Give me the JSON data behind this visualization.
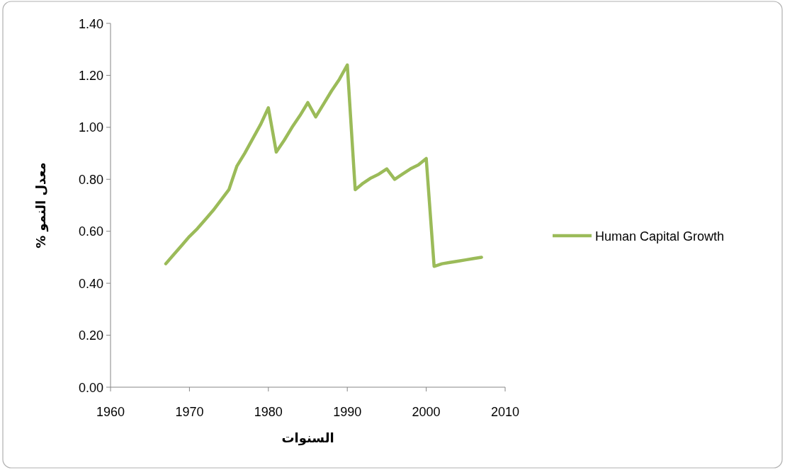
{
  "chart_data": {
    "type": "line",
    "xlabel": "السنوات",
    "ylabel": "معدل النمو %",
    "x": [
      1967,
      1968,
      1969,
      1970,
      1971,
      1972,
      1973,
      1974,
      1975,
      1976,
      1977,
      1978,
      1979,
      1980,
      1981,
      1982,
      1983,
      1984,
      1985,
      1986,
      1987,
      1988,
      1989,
      1990,
      1991,
      1992,
      1993,
      1994,
      1995,
      1996,
      1997,
      1998,
      1999,
      2000,
      2001,
      2002,
      2003,
      2004,
      2005,
      2006,
      2007
    ],
    "series": [
      {
        "name": "Human Capital Growth",
        "color": "#9bbb59",
        "values": [
          0.475,
          0.51,
          0.545,
          0.58,
          0.61,
          0.645,
          0.68,
          0.72,
          0.76,
          0.85,
          0.9,
          0.955,
          1.01,
          1.075,
          0.905,
          0.95,
          1.0,
          1.045,
          1.095,
          1.04,
          1.09,
          1.14,
          1.185,
          1.24,
          0.76,
          0.785,
          0.805,
          0.82,
          0.84,
          0.8,
          0.82,
          0.84,
          0.855,
          0.88,
          0.465,
          0.475,
          0.48,
          0.485,
          0.49,
          0.495,
          0.5
        ]
      }
    ],
    "xlim": [
      1960,
      2010
    ],
    "xticks": [
      1960,
      1970,
      1980,
      1990,
      2000,
      2010
    ],
    "ylim": [
      0,
      1.4
    ],
    "yticks": [
      {
        "value": 0,
        "label": "0.00"
      },
      {
        "value": 0.2,
        "label": "0.20"
      },
      {
        "value": 0.4,
        "label": "0.40"
      },
      {
        "value": 0.6,
        "label": "0.60"
      },
      {
        "value": 0.8,
        "label": "0.80"
      },
      {
        "value": 1.0,
        "label": "1.00"
      },
      {
        "value": 1.2,
        "label": "1.20"
      },
      {
        "value": 1.4,
        "label": "1.40"
      }
    ],
    "legend": "right"
  }
}
